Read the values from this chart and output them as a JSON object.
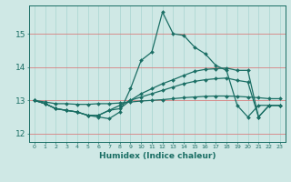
{
  "xlabel": "Humidex (Indice chaleur)",
  "background_color": "#cfe8e5",
  "line_color": "#1a6e64",
  "xlim": [
    -0.5,
    23.5
  ],
  "ylim": [
    11.75,
    15.85
  ],
  "yticks": [
    12,
    13,
    14,
    15
  ],
  "xticks": [
    0,
    1,
    2,
    3,
    4,
    5,
    6,
    7,
    8,
    9,
    10,
    11,
    12,
    13,
    14,
    15,
    16,
    17,
    18,
    19,
    20,
    21,
    22,
    23
  ],
  "series": [
    [
      13.0,
      12.9,
      12.75,
      12.7,
      12.65,
      12.55,
      12.5,
      12.45,
      12.65,
      13.35,
      14.2,
      14.45,
      15.65,
      15.0,
      14.95,
      14.6,
      14.4,
      14.05,
      13.9,
      12.85,
      12.5,
      12.85,
      12.85,
      12.85
    ],
    [
      13.0,
      12.9,
      12.75,
      12.7,
      12.65,
      12.55,
      12.55,
      12.7,
      12.75,
      13.0,
      13.2,
      13.35,
      13.5,
      13.62,
      13.75,
      13.87,
      13.93,
      13.95,
      13.97,
      13.9,
      13.9,
      12.5,
      12.85,
      12.85
    ],
    [
      13.0,
      12.9,
      12.75,
      12.7,
      12.65,
      12.55,
      12.55,
      12.7,
      12.85,
      13.0,
      13.1,
      13.2,
      13.3,
      13.4,
      13.5,
      13.57,
      13.62,
      13.65,
      13.67,
      13.6,
      13.55,
      12.5,
      12.85,
      12.85
    ],
    [
      13.0,
      12.95,
      12.9,
      12.9,
      12.88,
      12.88,
      12.9,
      12.9,
      12.92,
      12.95,
      12.98,
      13.0,
      13.02,
      13.05,
      13.08,
      13.1,
      13.12,
      13.13,
      13.13,
      13.12,
      13.1,
      13.08,
      13.05,
      13.05
    ]
  ],
  "linewidth": 0.9,
  "markersize": 2.0
}
